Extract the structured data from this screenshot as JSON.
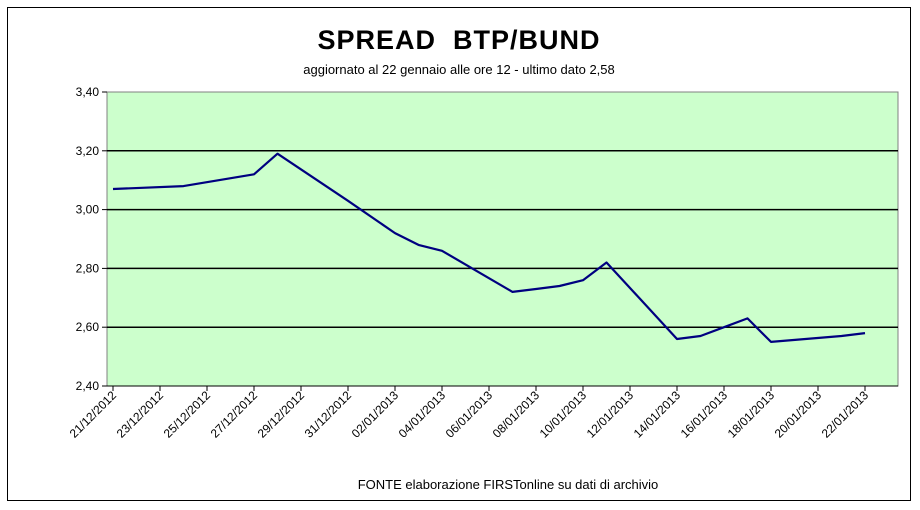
{
  "chart_data": {
    "type": "line",
    "title": "SPREAD  BTP/BUND",
    "subtitle": "aggiornato al 22 gennaio alle ore 12 - ultimo dato 2,58",
    "source": "FONTE elaborazione FIRSTonline su dati di archivio",
    "ylim": [
      2.4,
      3.4
    ],
    "y_ticks": [
      "3,40",
      "3,20",
      "3,00",
      "2,80",
      "2,60",
      "2,40"
    ],
    "y_tick_values": [
      3.4,
      3.2,
      3.0,
      2.8,
      2.6,
      2.4
    ],
    "x_tick_labels": [
      "21/12/2012",
      "23/12/2012",
      "25/12/2012",
      "27/12/2012",
      "29/12/2012",
      "31/12/2012",
      "02/01/2013",
      "04/01/2013",
      "06/01/2013",
      "08/01/2013",
      "10/01/2013",
      "12/01/2013",
      "14/01/2013",
      "16/01/2013",
      "18/01/2013",
      "20/01/2013",
      "22/01/2013"
    ],
    "x": [
      "21/12/2012",
      "24/12/2012",
      "27/12/2012",
      "28/12/2012",
      "31/12/2012",
      "02/01/2013",
      "03/01/2013",
      "04/01/2013",
      "07/01/2013",
      "08/01/2013",
      "09/01/2013",
      "10/01/2013",
      "11/01/2013",
      "14/01/2013",
      "15/01/2013",
      "16/01/2013",
      "17/01/2013",
      "18/01/2013",
      "21/01/2013",
      "22/01/2013"
    ],
    "values": [
      3.07,
      3.08,
      3.12,
      3.19,
      3.03,
      2.92,
      2.88,
      2.86,
      2.72,
      2.73,
      2.74,
      2.76,
      2.82,
      2.56,
      2.57,
      2.6,
      2.63,
      2.55,
      2.57,
      2.58
    ],
    "grid": true,
    "plot_background": "#ccffcc",
    "line_color": "#000080"
  }
}
